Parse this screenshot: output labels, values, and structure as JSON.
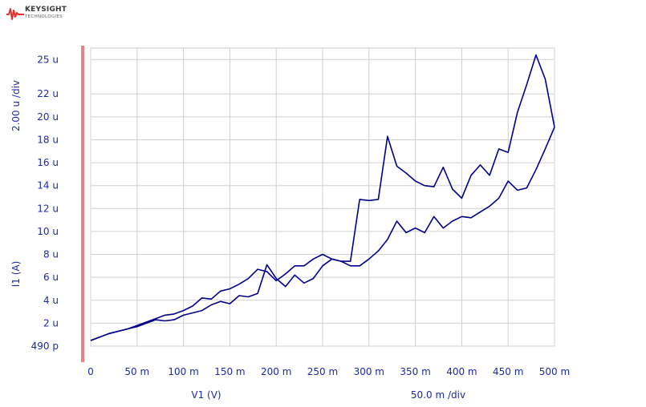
{
  "brand": {
    "name": "KEYSIGHT",
    "tagline": "TECHNOLOGIES"
  },
  "colors": {
    "trace": "#00008b",
    "accent_bar": "#e88282",
    "grid": "#d0d0d0",
    "text": "#1c2aa8",
    "logo_red": "#e03030"
  },
  "chart_data": {
    "type": "line",
    "x_label": "V1 (V)",
    "x_scale": "50.0 m /div",
    "y_label": "I1 (A)",
    "y_scale": "2.00 u /div",
    "x_ticks": [
      "0",
      "50 m",
      "100 m",
      "150 m",
      "200 m",
      "250 m",
      "300 m",
      "350 m",
      "400 m",
      "450 m",
      "500 m"
    ],
    "y_ticks": [
      "490 p",
      "2 u",
      "4 u",
      "6 u",
      "8 u",
      "10 u",
      "12 u",
      "14 u",
      "16 u",
      "18 u",
      "20 u",
      "22 u",
      "25 u"
    ],
    "xlim": [
      0,
      0.5
    ],
    "ylim": [
      0,
      26.0
    ],
    "y_unit": "uA",
    "grid": true,
    "series": [
      {
        "x": [
          0,
          0.01,
          0.02,
          0.03,
          0.04,
          0.05,
          0.06,
          0.07,
          0.08,
          0.09,
          0.1,
          0.11,
          0.12,
          0.13,
          0.14,
          0.15,
          0.16,
          0.17,
          0.18,
          0.19,
          0.2,
          0.21,
          0.22,
          0.23,
          0.24,
          0.25,
          0.26,
          0.27,
          0.28,
          0.29,
          0.3,
          0.31,
          0.32,
          0.33,
          0.34,
          0.35,
          0.36,
          0.37,
          0.38,
          0.39,
          0.4,
          0.41,
          0.42,
          0.43,
          0.44,
          0.45,
          0.46,
          0.47,
          0.48,
          0.49,
          0.5
        ],
        "y": [
          0.49,
          0.8,
          1.1,
          1.3,
          1.5,
          1.8,
          2.1,
          2.4,
          2.7,
          2.8,
          3.1,
          3.5,
          4.2,
          4.1,
          4.8,
          5.0,
          5.4,
          5.9,
          6.7,
          6.5,
          5.7,
          6.3,
          7.0,
          7.0,
          7.6,
          8.0,
          7.6,
          7.4,
          7.4,
          12.8,
          12.7,
          12.8,
          18.3,
          15.7,
          15.1,
          14.4,
          14.0,
          13.9,
          15.6,
          13.7,
          12.9,
          14.9,
          15.8,
          14.9,
          17.2,
          16.9,
          20.4,
          22.8,
          25.4,
          23.3,
          19.1
        ]
      },
      {
        "x": [
          0,
          0.01,
          0.02,
          0.03,
          0.04,
          0.05,
          0.06,
          0.07,
          0.08,
          0.09,
          0.1,
          0.11,
          0.12,
          0.13,
          0.14,
          0.15,
          0.16,
          0.17,
          0.18,
          0.19,
          0.2,
          0.21,
          0.22,
          0.23,
          0.24,
          0.25,
          0.26,
          0.27,
          0.28,
          0.29,
          0.3,
          0.31,
          0.32,
          0.33,
          0.34,
          0.35,
          0.36,
          0.37,
          0.38,
          0.39,
          0.4,
          0.41,
          0.42,
          0.43,
          0.44,
          0.45,
          0.46,
          0.47,
          0.48,
          0.49,
          0.5
        ],
        "y": [
          0.49,
          0.8,
          1.1,
          1.3,
          1.5,
          1.7,
          2.0,
          2.3,
          2.2,
          2.3,
          2.7,
          2.9,
          3.1,
          3.6,
          3.9,
          3.7,
          4.4,
          4.3,
          4.6,
          7.1,
          5.9,
          5.2,
          6.2,
          5.5,
          5.9,
          7.0,
          7.6,
          7.4,
          7.0,
          7.0,
          7.6,
          8.3,
          9.3,
          10.9,
          9.9,
          10.3,
          9.9,
          11.3,
          10.3,
          10.9,
          11.3,
          11.2,
          11.7,
          12.2,
          12.9,
          14.4,
          13.6,
          13.8,
          15.4,
          17.2,
          19.1
        ]
      }
    ]
  }
}
